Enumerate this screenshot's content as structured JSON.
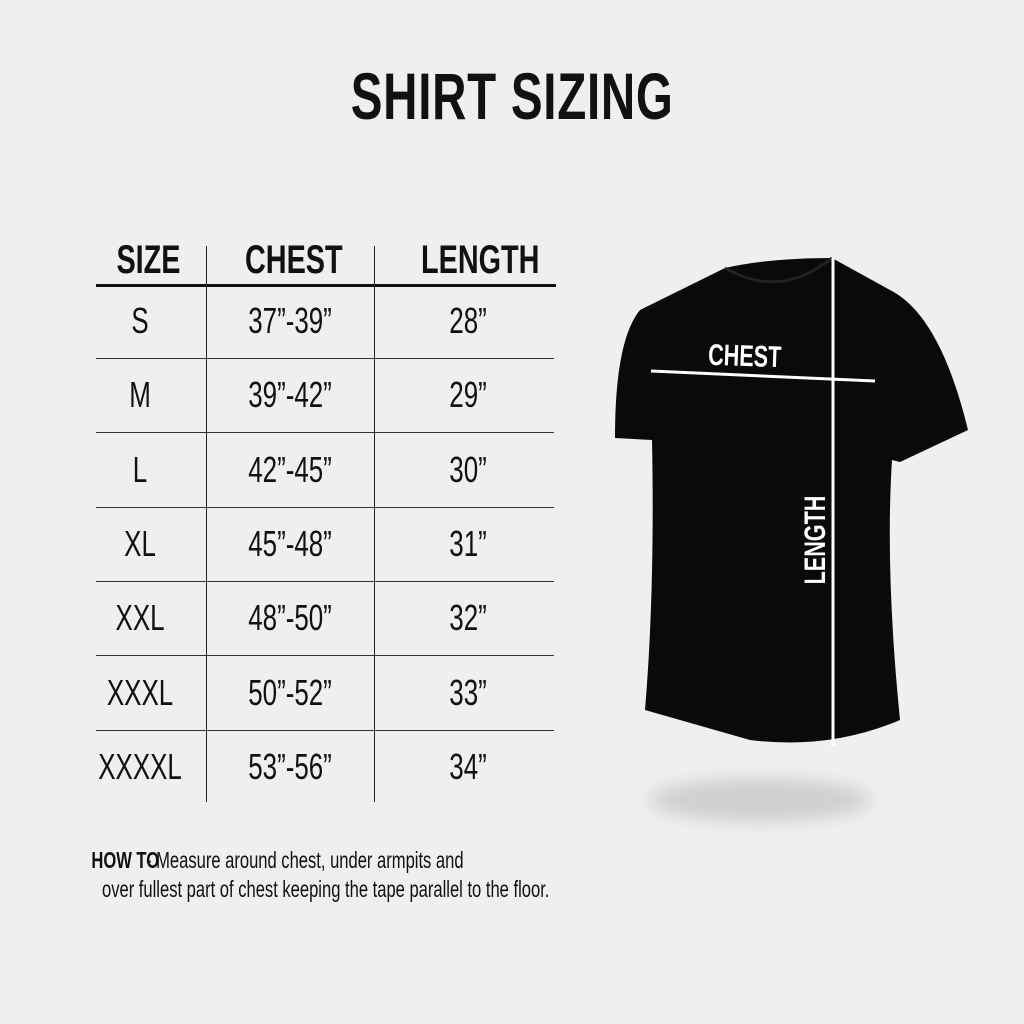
{
  "title": "SHIRT SIZING",
  "table": {
    "headers": [
      "SIZE",
      "CHEST",
      "LENGTH"
    ],
    "rows": [
      [
        "S",
        "37”-39”",
        "28”"
      ],
      [
        "M",
        "39”-42”",
        "29”"
      ],
      [
        "L",
        "42”-45”",
        "30”"
      ],
      [
        "XL",
        "45”-48”",
        "31”"
      ],
      [
        "XXL",
        "48”-50”",
        "32”"
      ],
      [
        "XXXL",
        "50”-52”",
        "33”"
      ],
      [
        "XXXXL",
        "53”-56”",
        "34”"
      ]
    ]
  },
  "howto": {
    "label": "HOW TO",
    "line1": " - Measure around chest, under armpits and",
    "line2": "over fullest part of chest keeping the tape parallel to the floor."
  },
  "diagram": {
    "chest_label": "CHEST",
    "length_label": "LENGTH",
    "shirt_color": "#0a0a0a",
    "line_color": "#ffffff"
  }
}
